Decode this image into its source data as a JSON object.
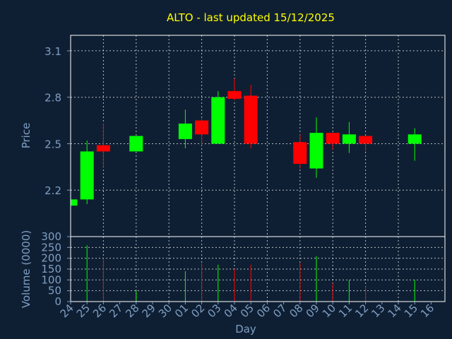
{
  "colors": {
    "background": "#0f1f33",
    "title": "#ffff00",
    "axis_text": "#7f9fc4",
    "frame": "#ffffff",
    "grid": "#ffffff",
    "up": "#00ff00",
    "down": "#ff0000"
  },
  "chart_data": {
    "type": "candlestick",
    "title": "ALTO - last updated 15/12/2025",
    "xlabel": "Day",
    "price_ylabel": "Price",
    "volume_ylabel": "Volume (0000)",
    "x_ticks": [
      "24",
      "25",
      "26",
      "27",
      "28",
      "29",
      "30",
      "01",
      "02",
      "03",
      "04",
      "05",
      "06",
      "07",
      "08",
      "09",
      "10",
      "11",
      "12",
      "13",
      "14",
      "15",
      "16"
    ],
    "price_ticks": [
      "2.2",
      "2.5",
      "2.8",
      "3.1"
    ],
    "price_ylim": [
      1.9,
      3.2
    ],
    "volume_ticks": [
      "0",
      "50",
      "100",
      "150",
      "200",
      "250",
      "300"
    ],
    "volume_ylim": [
      0,
      300
    ],
    "grid": true,
    "candles": [
      {
        "day": "24",
        "open": 2.1,
        "close": 2.14,
        "high": 2.14,
        "low": 2.1,
        "volume": 2
      },
      {
        "day": "25",
        "open": 2.14,
        "close": 2.45,
        "high": 2.52,
        "low": 2.11,
        "volume": 260
      },
      {
        "day": "26",
        "open": 2.49,
        "close": 2.45,
        "high": 2.63,
        "low": 2.35,
        "volume": 200
      },
      {
        "day": "28",
        "open": 2.45,
        "close": 2.55,
        "high": 2.55,
        "low": 2.45,
        "volume": 50
      },
      {
        "day": "01",
        "open": 2.53,
        "close": 2.63,
        "high": 2.72,
        "low": 2.47,
        "volume": 140
      },
      {
        "day": "02",
        "open": 2.65,
        "close": 2.56,
        "high": 2.66,
        "low": 2.49,
        "volume": 175
      },
      {
        "day": "03",
        "open": 2.5,
        "close": 2.8,
        "high": 2.84,
        "low": 2.5,
        "volume": 170
      },
      {
        "day": "04",
        "open": 2.84,
        "close": 2.79,
        "high": 2.92,
        "low": 2.78,
        "volume": 150
      },
      {
        "day": "05",
        "open": 2.81,
        "close": 2.5,
        "high": 2.88,
        "low": 2.47,
        "volume": 170
      },
      {
        "day": "08",
        "open": 2.51,
        "close": 2.37,
        "high": 2.56,
        "low": 2.34,
        "volume": 180
      },
      {
        "day": "09",
        "open": 2.34,
        "close": 2.57,
        "high": 2.67,
        "low": 2.28,
        "volume": 210
      },
      {
        "day": "10",
        "open": 2.57,
        "close": 2.5,
        "high": 2.57,
        "low": 2.46,
        "volume": 85
      },
      {
        "day": "11",
        "open": 2.5,
        "close": 2.56,
        "high": 2.64,
        "low": 2.44,
        "volume": 100
      },
      {
        "day": "12",
        "open": 2.55,
        "close": 2.5,
        "high": 2.55,
        "low": 2.45,
        "volume": 70
      },
      {
        "day": "15",
        "open": 2.5,
        "close": 2.56,
        "high": 2.6,
        "low": 2.39,
        "volume": 100
      }
    ]
  }
}
